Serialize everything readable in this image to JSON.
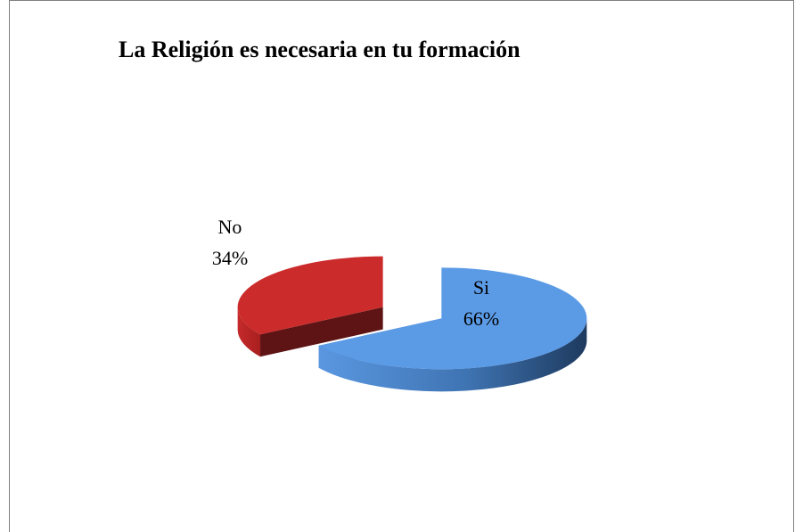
{
  "chart_data": {
    "type": "pie",
    "title": "La Religión es necesaria en tu formación",
    "categories": [
      "Si",
      "No"
    ],
    "values": [
      66,
      34
    ],
    "value_labels": [
      "66%",
      "34%"
    ],
    "colors": [
      "#5b9be6",
      "#cc2b2b"
    ]
  }
}
